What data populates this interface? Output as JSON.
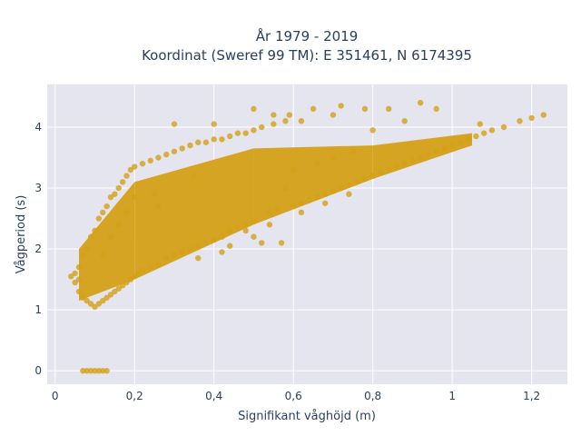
{
  "chart_data": {
    "type": "scatter",
    "title_line1": "År 1979 - 2019",
    "title_line2": "Koordinat (Sweref 99 TM): E 351461, N 6174395",
    "xlabel": "Signifikant våghöjd (m)",
    "ylabel": "Vågperiod (s)",
    "xlim": [
      -0.02,
      1.29
    ],
    "ylim": [
      -0.22,
      4.7
    ],
    "x_ticks": [
      {
        "value": 0,
        "label": "0"
      },
      {
        "value": 0.2,
        "label": "0,2"
      },
      {
        "value": 0.4,
        "label": "0,4"
      },
      {
        "value": 0.6,
        "label": "0,6"
      },
      {
        "value": 0.8,
        "label": "0,8"
      },
      {
        "value": 1.0,
        "label": "1"
      },
      {
        "value": 1.2,
        "label": "1,2"
      }
    ],
    "y_ticks": [
      {
        "value": 0,
        "label": "0"
      },
      {
        "value": 1,
        "label": "1"
      },
      {
        "value": 2,
        "label": "2"
      },
      {
        "value": 3,
        "label": "3"
      },
      {
        "value": 4,
        "label": "4"
      }
    ],
    "grid": true,
    "marker_color": "#d4a017",
    "plot_bg": "#e5e5ef",
    "points": [
      [
        0.07,
        0.0
      ],
      [
        0.08,
        0.0
      ],
      [
        0.09,
        0.0
      ],
      [
        0.1,
        0.0
      ],
      [
        0.11,
        0.0
      ],
      [
        0.12,
        0.0
      ],
      [
        0.13,
        0.0
      ],
      [
        0.04,
        1.55
      ],
      [
        0.05,
        1.6
      ],
      [
        0.05,
        1.45
      ],
      [
        0.06,
        1.3
      ],
      [
        0.06,
        1.5
      ],
      [
        0.06,
        1.7
      ],
      [
        0.07,
        1.2
      ],
      [
        0.07,
        1.9
      ],
      [
        0.08,
        1.15
      ],
      [
        0.08,
        2.0
      ],
      [
        0.09,
        1.1
      ],
      [
        0.09,
        2.2
      ],
      [
        0.1,
        1.05
      ],
      [
        0.1,
        2.3
      ],
      [
        0.11,
        1.1
      ],
      [
        0.11,
        2.5
      ],
      [
        0.12,
        1.15
      ],
      [
        0.12,
        2.6
      ],
      [
        0.13,
        1.2
      ],
      [
        0.13,
        2.7
      ],
      [
        0.14,
        1.25
      ],
      [
        0.14,
        2.85
      ],
      [
        0.15,
        1.3
      ],
      [
        0.15,
        2.9
      ],
      [
        0.16,
        1.35
      ],
      [
        0.16,
        3.0
      ],
      [
        0.17,
        1.4
      ],
      [
        0.17,
        3.1
      ],
      [
        0.18,
        1.45
      ],
      [
        0.18,
        3.2
      ],
      [
        0.19,
        1.5
      ],
      [
        0.19,
        3.3
      ],
      [
        0.2,
        1.55
      ],
      [
        0.2,
        3.35
      ],
      [
        0.21,
        1.6
      ],
      [
        0.22,
        1.65
      ],
      [
        0.22,
        3.4
      ],
      [
        0.24,
        1.7
      ],
      [
        0.24,
        3.45
      ],
      [
        0.26,
        1.75
      ],
      [
        0.26,
        3.5
      ],
      [
        0.28,
        1.85
      ],
      [
        0.28,
        3.55
      ],
      [
        0.3,
        1.9
      ],
      [
        0.3,
        3.6
      ],
      [
        0.32,
        1.95
      ],
      [
        0.32,
        3.65
      ],
      [
        0.34,
        2.0
      ],
      [
        0.34,
        3.7
      ],
      [
        0.36,
        2.05
      ],
      [
        0.36,
        3.75
      ],
      [
        0.38,
        2.1
      ],
      [
        0.38,
        3.75
      ],
      [
        0.4,
        2.15
      ],
      [
        0.4,
        3.8
      ],
      [
        0.42,
        2.2
      ],
      [
        0.42,
        3.8
      ],
      [
        0.44,
        2.3
      ],
      [
        0.44,
        3.85
      ],
      [
        0.46,
        2.35
      ],
      [
        0.46,
        3.9
      ],
      [
        0.48,
        2.4
      ],
      [
        0.48,
        3.9
      ],
      [
        0.5,
        2.45
      ],
      [
        0.5,
        3.95
      ],
      [
        0.52,
        2.1
      ],
      [
        0.52,
        4.0
      ],
      [
        0.54,
        2.6
      ],
      [
        0.55,
        4.05
      ],
      [
        0.56,
        2.65
      ],
      [
        0.58,
        4.1
      ],
      [
        0.6,
        2.7
      ],
      [
        0.62,
        2.75
      ],
      [
        0.62,
        4.1
      ],
      [
        0.64,
        2.8
      ],
      [
        0.66,
        2.85
      ],
      [
        0.68,
        2.9
      ],
      [
        0.7,
        2.95
      ],
      [
        0.72,
        3.0
      ],
      [
        0.74,
        3.05
      ],
      [
        0.76,
        3.1
      ],
      [
        0.78,
        3.15
      ],
      [
        0.8,
        3.2
      ],
      [
        0.82,
        3.25
      ],
      [
        0.84,
        3.3
      ],
      [
        0.86,
        3.35
      ],
      [
        0.88,
        3.4
      ],
      [
        0.9,
        3.45
      ],
      [
        0.92,
        3.5
      ],
      [
        0.94,
        3.55
      ],
      [
        0.96,
        3.6
      ],
      [
        0.98,
        3.65
      ],
      [
        1.0,
        3.7
      ],
      [
        1.02,
        3.75
      ],
      [
        1.04,
        3.8
      ],
      [
        1.06,
        3.85
      ],
      [
        1.08,
        3.9
      ],
      [
        1.1,
        3.95
      ],
      [
        1.13,
        4.0
      ],
      [
        1.17,
        4.1
      ],
      [
        1.2,
        4.15
      ],
      [
        1.23,
        4.2
      ],
      [
        0.88,
        4.1
      ],
      [
        0.78,
        4.3
      ],
      [
        0.7,
        4.2
      ],
      [
        0.55,
        4.2
      ],
      [
        0.4,
        4.05
      ],
      [
        0.3,
        4.05
      ],
      [
        0.5,
        4.3
      ],
      [
        0.59,
        4.2
      ],
      [
        0.92,
        4.4
      ],
      [
        0.84,
        4.3
      ],
      [
        0.65,
        4.3
      ],
      [
        0.72,
        4.35
      ],
      [
        0.96,
        4.3
      ],
      [
        0.8,
        3.95
      ],
      [
        1.07,
        4.05
      ],
      [
        0.58,
        3.0
      ],
      [
        0.62,
        2.6
      ],
      [
        0.68,
        2.75
      ],
      [
        0.74,
        2.9
      ],
      [
        0.6,
        3.3
      ],
      [
        0.66,
        3.4
      ],
      [
        0.7,
        3.5
      ],
      [
        0.75,
        3.6
      ],
      [
        0.54,
        2.4
      ],
      [
        0.48,
        2.3
      ],
      [
        0.5,
        2.2
      ],
      [
        0.57,
        2.1
      ],
      [
        0.44,
        2.05
      ],
      [
        0.36,
        1.85
      ],
      [
        0.42,
        1.95
      ],
      [
        0.25,
        2.9
      ],
      [
        0.26,
        2.7
      ],
      [
        0.35,
        3.2
      ],
      [
        0.2,
        2.85
      ],
      [
        0.18,
        2.6
      ],
      [
        0.16,
        2.4
      ],
      [
        0.14,
        2.2
      ],
      [
        0.12,
        1.9
      ]
    ],
    "bands": [
      {
        "x0": 0.06,
        "x1": 0.2,
        "y_low_at_x0": 1.15,
        "y_low_at_x1": 1.5,
        "y_high_at_x0": 2.0,
        "y_high_at_x1": 3.1
      },
      {
        "x0": 0.2,
        "x1": 0.5,
        "y_low_at_x0": 1.5,
        "y_low_at_x1": 2.4,
        "y_high_at_x0": 3.1,
        "y_high_at_x1": 3.65
      },
      {
        "x0": 0.5,
        "x1": 0.8,
        "y_low_at_x0": 2.4,
        "y_low_at_x1": 3.15,
        "y_high_at_x0": 3.65,
        "y_high_at_x1": 3.7
      },
      {
        "x0": 0.8,
        "x1": 1.05,
        "y_low_at_x0": 3.15,
        "y_low_at_x1": 3.7,
        "y_high_at_x0": 3.7,
        "y_high_at_x1": 3.9
      }
    ]
  }
}
